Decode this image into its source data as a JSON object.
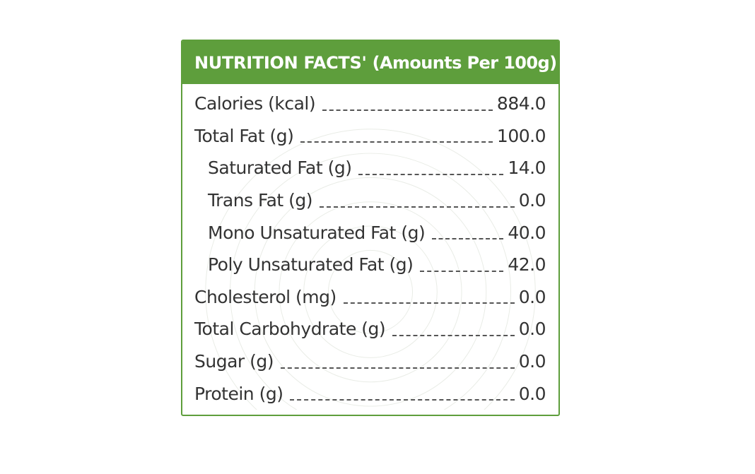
{
  "header": {
    "title": "NUTRITION FACTS",
    "mark": "'",
    "subtitle": "(Amounts Per 100g)"
  },
  "rows": [
    {
      "label": "Calories (kcal)",
      "value": "884.0"
    },
    {
      "label": "Total Fat (g)",
      "value": "100.0"
    },
    {
      "label": "Saturated Fat (g)",
      "value": "14.0"
    },
    {
      "label": "Trans Fat (g)",
      "value": "0.0"
    },
    {
      "label": "Mono Unsaturated Fat (g)",
      "value": "40.0"
    },
    {
      "label": "Poly Unsaturated Fat (g)",
      "value": "42.0"
    },
    {
      "label": "Cholesterol (mg)",
      "value": "0.0"
    },
    {
      "label": "Total Carbohydrate (g)",
      "value": "0.0"
    },
    {
      "label": "Sugar (g)",
      "value": "0.0"
    },
    {
      "label": "Protein (g)",
      "value": "0.0"
    }
  ],
  "colors": {
    "header_bg": "#5e9e3c",
    "header_text": "#ffffff",
    "body_text": "#333333"
  }
}
